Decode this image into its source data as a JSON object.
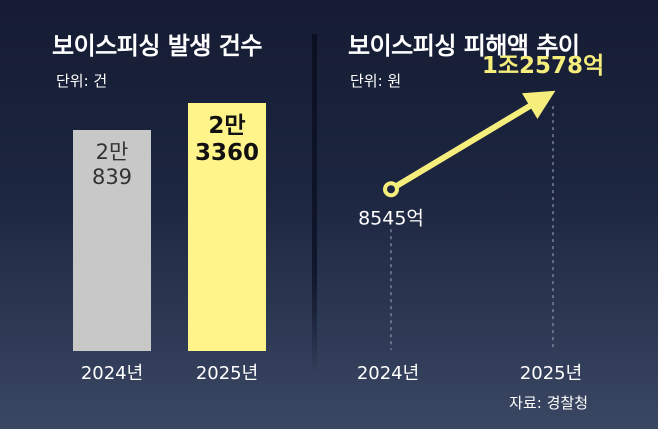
{
  "chart_data": [
    {
      "type": "bar",
      "title": "보이스피싱 발생 건수",
      "unit_label": "단위: 건",
      "categories": [
        "2024년",
        "2025년"
      ],
      "values": [
        20839,
        23360
      ],
      "data_labels": [
        [
          "2만",
          "839"
        ],
        [
          "2만",
          "3360"
        ]
      ],
      "colors": [
        "#c8c8c8",
        "#fff48a"
      ],
      "label_colors": [
        "#333333",
        "#111111"
      ],
      "ylim": [
        0,
        25000
      ],
      "grid": false
    },
    {
      "type": "line",
      "title": "보이스피싱 피해액 추이",
      "unit_label": "단위: 원",
      "categories": [
        "2024년",
        "2025년"
      ],
      "values": [
        854500000000,
        1257800000000
      ],
      "data_labels": [
        "8545억",
        "1조2578억"
      ],
      "line_color": "#f5ee7c",
      "ylim": [
        0,
        1300000000000
      ],
      "grid": false
    }
  ],
  "source": "자료: 경찰청"
}
